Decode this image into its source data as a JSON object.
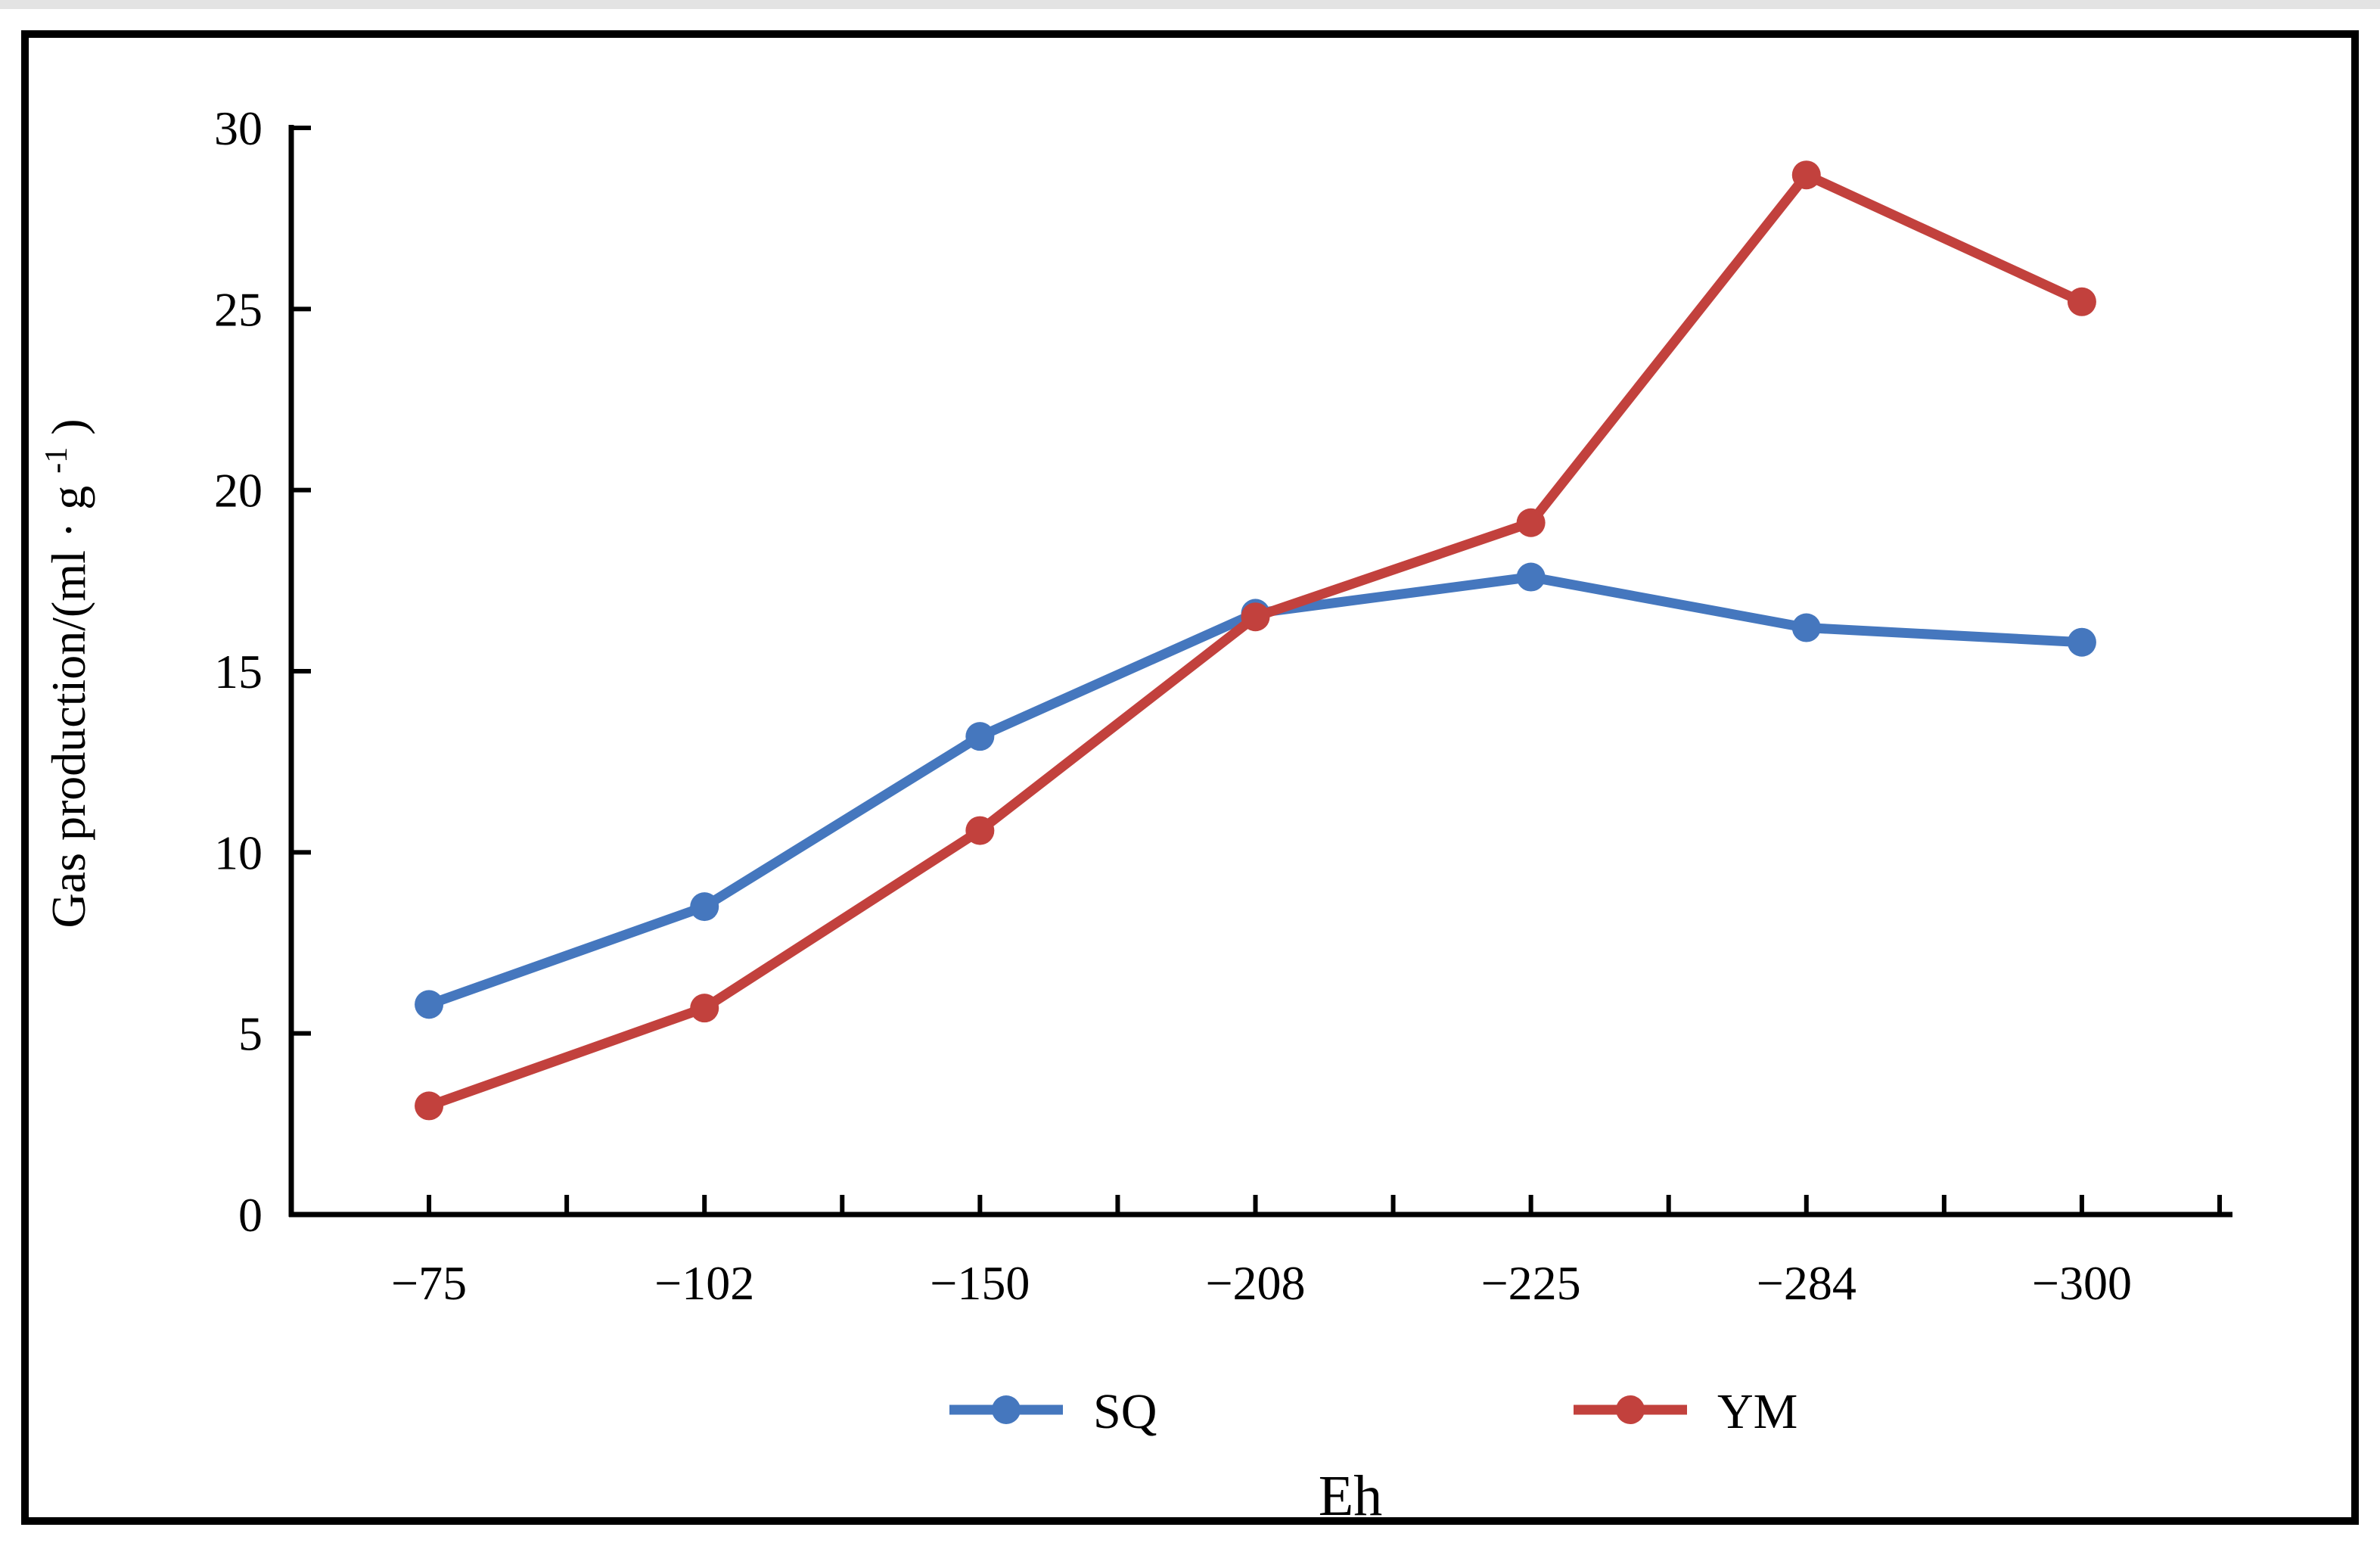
{
  "page": {
    "background": "#ffffff",
    "frame_border_color": "#000000",
    "top_edge_color": "#e3e3e3"
  },
  "chart_data": {
    "type": "line",
    "title": "",
    "xlabel": "Eh",
    "ylabel": "Gas production/(ml · g⁻¹)",
    "ylabel_parts": {
      "main": "Gas production/(ml · g",
      "sup": "-1",
      "close": ")"
    },
    "categories": [
      "−75",
      "−102",
      "−150",
      "−208",
      "−225",
      "−284",
      "−300"
    ],
    "series": [
      {
        "name": "SQ",
        "color": "#4577BE",
        "values": [
          5.8,
          8.5,
          13.2,
          16.6,
          17.6,
          16.2,
          15.8
        ]
      },
      {
        "name": "YM",
        "color": "#C2413D",
        "values": [
          3.0,
          5.7,
          10.6,
          16.5,
          19.1,
          28.7,
          25.2
        ]
      }
    ],
    "ylim": [
      0,
      30
    ],
    "yticks": [
      0,
      5,
      10,
      15,
      20,
      25,
      30
    ],
    "grid": false,
    "legend_position": "bottom",
    "axis_color": "#000000",
    "text_color": "#000000",
    "marker": "circle"
  }
}
